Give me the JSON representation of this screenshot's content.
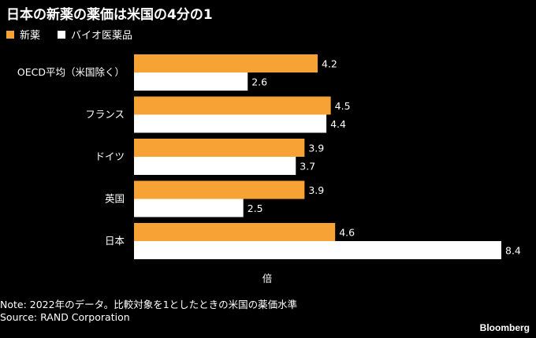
{
  "title": "日本の新薬の薬価は米国の4分の1",
  "legend": [
    {
      "label": "新薬",
      "color": "#f7a234"
    },
    {
      "label": "バイオ医薬品",
      "color": "#ffffff"
    }
  ],
  "chart_data": {
    "type": "bar",
    "orientation": "horizontal",
    "categories": [
      "OECD平均（米国除く）",
      "フランス",
      "ドイツ",
      "英国",
      "日本"
    ],
    "series": [
      {
        "name": "新薬",
        "values": [
          4.2,
          4.5,
          3.9,
          3.9,
          4.6
        ],
        "color": "#f7a234"
      },
      {
        "name": "バイオ医薬品",
        "values": [
          2.6,
          4.4,
          3.7,
          2.5,
          8.4
        ],
        "color": "#ffffff"
      }
    ],
    "title": "日本の新薬の薬価は米国の4分の1",
    "xlabel": "倍",
    "ylabel": "",
    "xlim": [
      0,
      8.4
    ],
    "grid": false,
    "legend_position": "top-left"
  },
  "note": "Note: 2022年のデータ。比較対象を1としたときの米国の薬価水準",
  "source": "Source: RAND Corporation",
  "brand": "Bloomberg"
}
